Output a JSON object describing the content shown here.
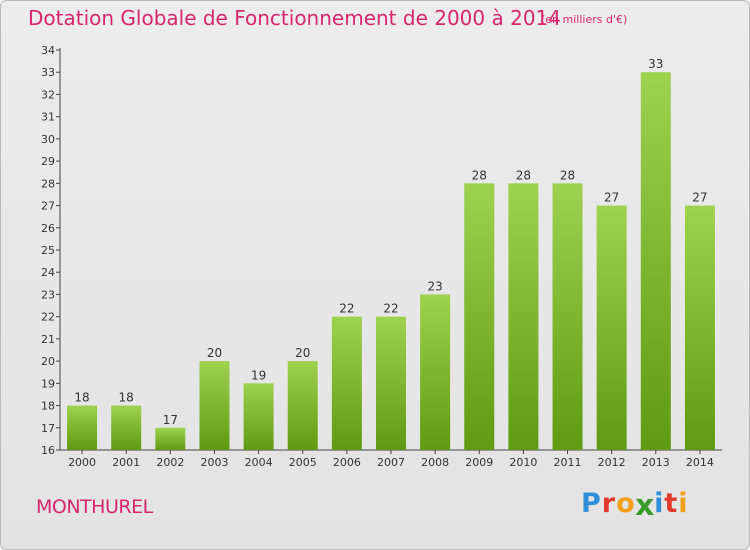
{
  "header": {
    "title": "Dotation Globale de Fonctionnement de 2000 à 2014",
    "unit": "(en milliers d'€)"
  },
  "footer": {
    "commune": "MONTHUREL",
    "logo": [
      "P",
      "r",
      "o",
      "x",
      "i",
      "t",
      "i"
    ]
  },
  "colors": {
    "accent": "#d8266e",
    "bar_top": "#9ed24f",
    "bar_bottom": "#5f9a12"
  },
  "chart_data": {
    "type": "bar",
    "title": "Dotation Globale de Fonctionnement de 2000 à 2014",
    "subtitle": "(en milliers d'€)",
    "categories": [
      "2000",
      "2001",
      "2002",
      "2003",
      "2004",
      "2005",
      "2006",
      "2007",
      "2008",
      "2009",
      "2010",
      "2011",
      "2012",
      "2013",
      "2014"
    ],
    "values": [
      18,
      18,
      17,
      20,
      19,
      20,
      22,
      22,
      23,
      28,
      28,
      28,
      27,
      33,
      27
    ],
    "ylim": [
      16,
      34
    ],
    "yticks": [
      16,
      17,
      18,
      19,
      20,
      21,
      22,
      23,
      24,
      25,
      26,
      27,
      28,
      29,
      30,
      31,
      32,
      33,
      34
    ],
    "grid": false
  }
}
